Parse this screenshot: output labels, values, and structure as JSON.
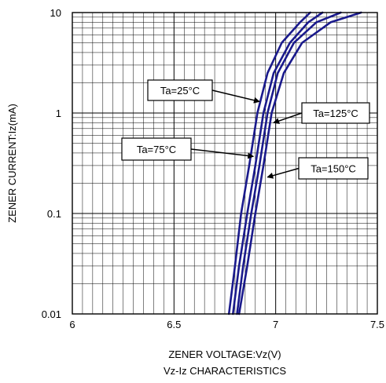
{
  "chart_data": {
    "type": "line",
    "title": "Vz-Iz CHARACTERISTICS",
    "xlabel": "ZENER VOLTAGE:Vz(V)",
    "ylabel": "ZENER CURRENT:Iz(mA)",
    "xlim": [
      6,
      7.5
    ],
    "ylim": [
      0.01,
      10
    ],
    "yscale": "log",
    "grid": true,
    "x_ticks": [
      {
        "value": 6,
        "label": "6"
      },
      {
        "value": 6.5,
        "label": "6.5"
      },
      {
        "value": 7,
        "label": "7"
      },
      {
        "value": 7.5,
        "label": "7.5"
      }
    ],
    "y_ticks": [
      {
        "value": 0.01,
        "label": "0.01"
      },
      {
        "value": 0.1,
        "label": "0.1"
      },
      {
        "value": 1,
        "label": "1"
      },
      {
        "value": 10,
        "label": "10"
      }
    ],
    "line_color": "#1a1a8c",
    "series": [
      {
        "name": "Ta=25°C",
        "points": [
          [
            6.77,
            0.01
          ],
          [
            6.8,
            0.03
          ],
          [
            6.83,
            0.1
          ],
          [
            6.87,
            0.3
          ],
          [
            6.91,
            1
          ],
          [
            6.96,
            2.5
          ],
          [
            7.03,
            5
          ],
          [
            7.12,
            8
          ],
          [
            7.17,
            10
          ]
        ]
      },
      {
        "name": "Ta=75°C",
        "points": [
          [
            6.79,
            0.01
          ],
          [
            6.82,
            0.03
          ],
          [
            6.86,
            0.1
          ],
          [
            6.9,
            0.3
          ],
          [
            6.94,
            1
          ],
          [
            6.99,
            2.5
          ],
          [
            7.07,
            5
          ],
          [
            7.16,
            8
          ],
          [
            7.23,
            10
          ]
        ]
      },
      {
        "name": "Ta=125°C",
        "points": [
          [
            6.81,
            0.01
          ],
          [
            6.84,
            0.03
          ],
          [
            6.88,
            0.1
          ],
          [
            6.92,
            0.3
          ],
          [
            6.96,
            1
          ],
          [
            7.01,
            2.5
          ],
          [
            7.09,
            5
          ],
          [
            7.2,
            8
          ],
          [
            7.32,
            10
          ]
        ]
      },
      {
        "name": "Ta=150°C",
        "points": [
          [
            6.82,
            0.01
          ],
          [
            6.86,
            0.03
          ],
          [
            6.9,
            0.1
          ],
          [
            6.94,
            0.3
          ],
          [
            6.98,
            1
          ],
          [
            7.04,
            2.5
          ],
          [
            7.13,
            5
          ],
          [
            7.27,
            8
          ],
          [
            7.42,
            10
          ]
        ]
      }
    ],
    "annotations": [
      {
        "text": "Ta=25°C",
        "series": "Ta=25°C",
        "arrow_to": [
          6.92,
          1.3
        ]
      },
      {
        "text": "Ta=125°C",
        "series": "Ta=125°C",
        "arrow_to": [
          6.99,
          0.8
        ]
      },
      {
        "text": "Ta=75°C",
        "series": "Ta=75°C",
        "arrow_to": [
          6.89,
          0.37
        ]
      },
      {
        "text": "Ta=150°C",
        "series": "Ta=150°C",
        "arrow_to": [
          6.96,
          0.23
        ]
      }
    ]
  }
}
